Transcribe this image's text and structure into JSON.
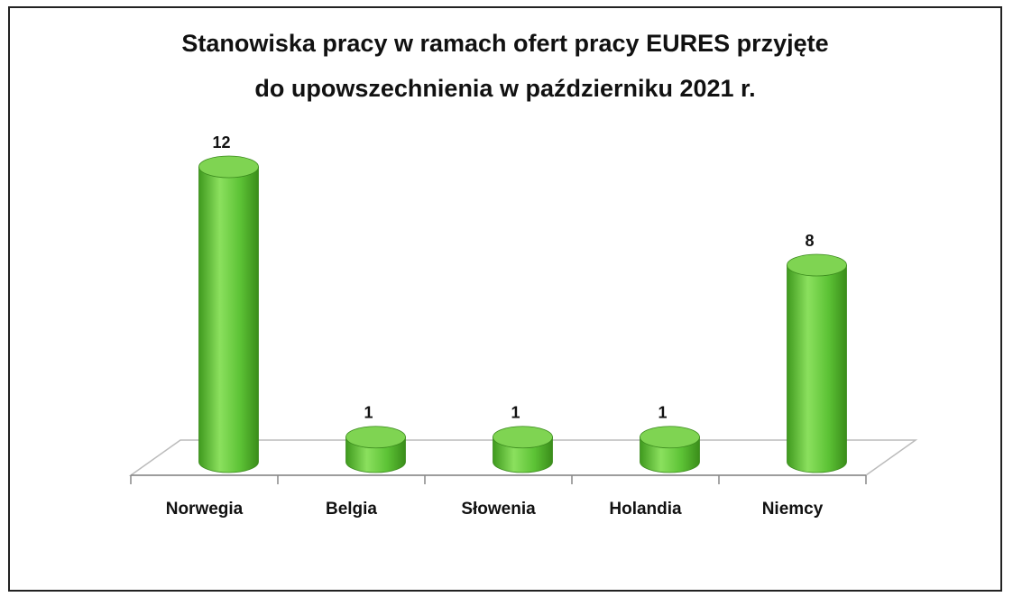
{
  "chart_data": {
    "type": "bar3d",
    "title": [
      "Stanowiska pracy w ramach ofert pracy EURES przyjęte",
      "do upowszechnienia w październiku 2021 r."
    ],
    "categories": [
      "Norwegia",
      "Belgia",
      "Słowenia",
      "Holandia",
      "Niemcy"
    ],
    "values": [
      12,
      1,
      1,
      1,
      8
    ],
    "color": "#5fc43a"
  }
}
